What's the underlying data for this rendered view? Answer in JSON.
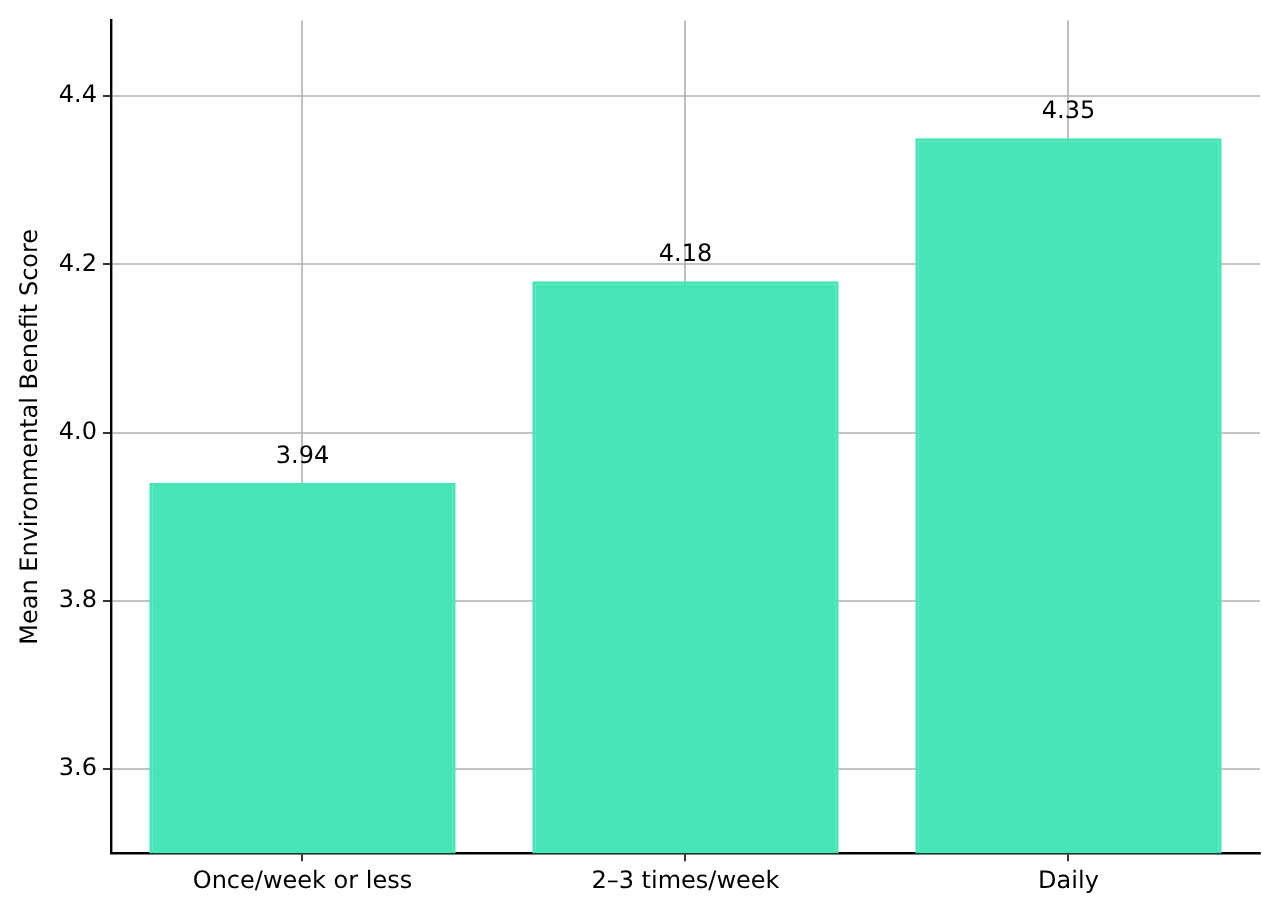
{
  "chart_data": {
    "type": "bar",
    "ylabel": "Mean Environmental Benefit Score",
    "categories": [
      "Once/week or less",
      "2–3 times/week",
      "Daily"
    ],
    "values": [
      3.94,
      4.18,
      4.35
    ],
    "color": "#45e5b5",
    "ylim": [
      3.5,
      4.49
    ],
    "yticks": [
      3.6,
      3.8,
      {
        "value": 4,
        "label": "4.0"
      },
      4.2,
      4.4
    ],
    "grid": true,
    "data_labels": true
  }
}
